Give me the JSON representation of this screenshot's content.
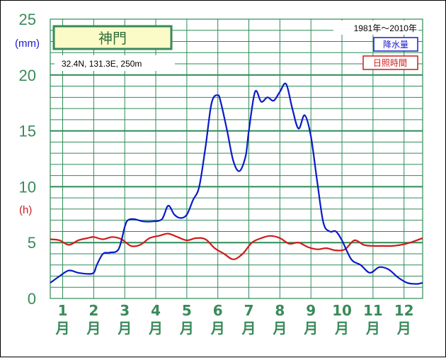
{
  "chart_data": {
    "type": "line",
    "station": "神門",
    "location": "32.4N,  131.3E,  250m",
    "period": "1981年〜2010年",
    "unit_precip": "(mm)",
    "unit_sun": "(h)",
    "yticks": [
      "0",
      "5",
      "10",
      "15",
      "20",
      "25"
    ],
    "ylim": [
      0,
      25
    ],
    "xlim": [
      1,
      12.6
    ],
    "months": [
      {
        "num": "1",
        "unit": "月"
      },
      {
        "num": "2",
        "unit": "月"
      },
      {
        "num": "3",
        "unit": "月"
      },
      {
        "num": "4",
        "unit": "月"
      },
      {
        "num": "5",
        "unit": "月"
      },
      {
        "num": "6",
        "unit": "月"
      },
      {
        "num": "7",
        "unit": "月"
      },
      {
        "num": "8",
        "unit": "月"
      },
      {
        "num": "9",
        "unit": "月"
      },
      {
        "num": "10",
        "unit": "月"
      },
      {
        "num": "11",
        "unit": "月"
      },
      {
        "num": "12",
        "unit": "月"
      }
    ],
    "colors": {
      "precip": "#0a1ac8",
      "sun": "#d01a1a",
      "grid": "#2e8b57",
      "tick": "#3a8a5a"
    },
    "series": [
      {
        "name": "降水量",
        "color": "#0a1ac8",
        "x": [
          0.6,
          0.9,
          1.2,
          1.5,
          1.8,
          2.0,
          2.1,
          2.3,
          2.5,
          2.8,
          3.0,
          3.1,
          3.3,
          3.6,
          3.9,
          4.2,
          4.4,
          4.6,
          4.8,
          5.0,
          5.2,
          5.4,
          5.6,
          5.8,
          6.0,
          6.1,
          6.3,
          6.5,
          6.7,
          6.9,
          7.0,
          7.2,
          7.4,
          7.6,
          7.8,
          8.0,
          8.2,
          8.4,
          8.6,
          8.8,
          9.0,
          9.2,
          9.4,
          9.6,
          9.8,
          10.0,
          10.3,
          10.6,
          10.9,
          11.2,
          11.5,
          11.8,
          12.1,
          12.4,
          12.6
        ],
        "values": [
          1.4,
          2.0,
          2.5,
          2.3,
          2.2,
          2.3,
          3.0,
          4.0,
          4.1,
          4.4,
          6.4,
          7.0,
          7.1,
          6.9,
          6.9,
          7.1,
          8.3,
          7.5,
          7.2,
          7.5,
          8.8,
          10.0,
          13.5,
          17.5,
          18.2,
          17.5,
          15.0,
          12.3,
          11.4,
          12.8,
          15.0,
          18.5,
          17.6,
          18.0,
          17.7,
          18.5,
          19.2,
          17.0,
          15.2,
          16.4,
          14.5,
          10.5,
          6.8,
          6.0,
          6.0,
          5.2,
          3.5,
          3.0,
          2.3,
          2.8,
          2.6,
          1.9,
          1.4,
          1.3,
          1.4
        ]
      },
      {
        "name": "日照時間",
        "color": "#d01a1a",
        "x": [
          0.6,
          0.9,
          1.2,
          1.5,
          1.8,
          2.0,
          2.3,
          2.6,
          2.9,
          3.2,
          3.5,
          3.8,
          4.1,
          4.4,
          4.7,
          5.0,
          5.3,
          5.6,
          5.9,
          6.2,
          6.5,
          6.8,
          7.1,
          7.4,
          7.7,
          8.0,
          8.3,
          8.6,
          8.9,
          9.2,
          9.5,
          9.8,
          10.1,
          10.4,
          10.7,
          11.0,
          11.3,
          11.6,
          11.9,
          12.2,
          12.6
        ],
        "values": [
          5.3,
          5.2,
          4.8,
          5.2,
          5.4,
          5.5,
          5.3,
          5.5,
          5.3,
          4.7,
          4.8,
          5.4,
          5.6,
          5.8,
          5.5,
          5.2,
          5.4,
          5.3,
          4.5,
          4.0,
          3.5,
          4.0,
          5.0,
          5.4,
          5.6,
          5.4,
          4.9,
          5.0,
          4.6,
          4.4,
          4.5,
          4.3,
          4.4,
          5.2,
          4.8,
          4.7,
          4.7,
          4.7,
          4.8,
          5.0,
          5.4
        ]
      }
    ]
  }
}
